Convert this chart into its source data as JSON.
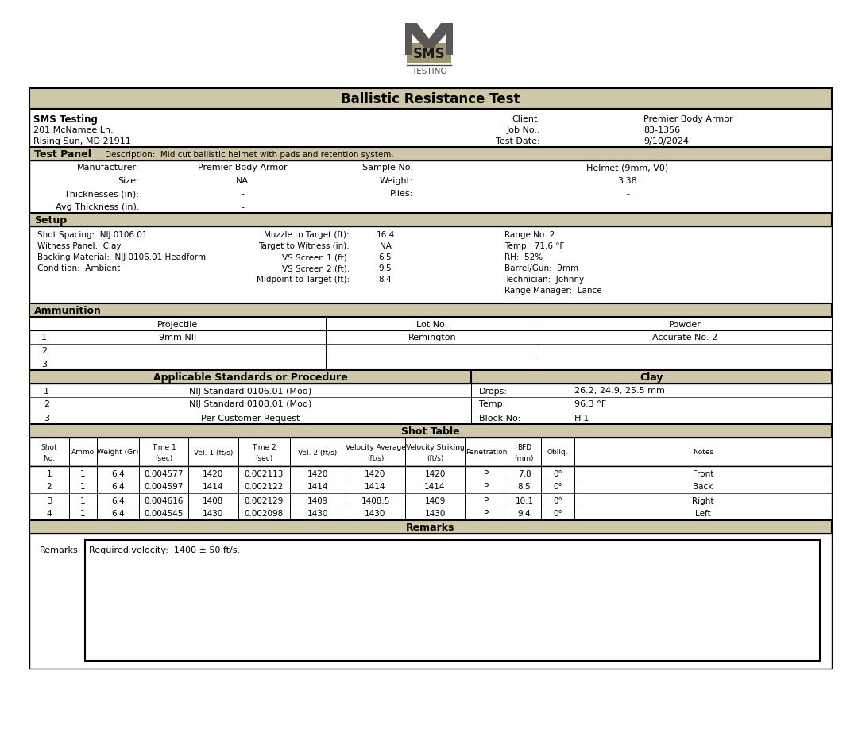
{
  "title": "Ballistic Resistance Test",
  "bg_color": "#ffffff",
  "header_bg": "#cec8a8",
  "border_color": "#000000",
  "company": "SMS Testing",
  "address1": "201 McNamee Ln.",
  "address2": "Rising Sun, MD 21911",
  "client_label": "Client:",
  "client_value": "Premier Body Armor",
  "job_label": "Job No.:",
  "job_value": "83-1356",
  "date_label": "Test Date:",
  "date_value": "9/10/2024",
  "test_panel_desc": "Description:  Mid cut ballistic helmet with pads and retention system.",
  "manufacturer_label": "Manufacturer:",
  "manufacturer_value": "Premier Body Armor",
  "sample_no_label": "Sample No.",
  "sample_no_value": "Helmet (9mm, V0)",
  "size_label": "Size:",
  "size_value": "NA",
  "weight_label": "Weight:",
  "weight_value": "3.38",
  "thickness_label": "Thicknesses (in):",
  "thickness_value": "-",
  "plies_label": "Plies:",
  "plies_value": "-",
  "avg_thickness_label": "Avg Thickness (in):",
  "avg_thickness_value": "-",
  "setup_rows": [
    [
      "Shot Spacing:  NIJ 0106.01",
      "Muzzle to Target (ft):",
      "16.4",
      "Range No. 2"
    ],
    [
      "Witness Panel:  Clay",
      "Target to Witness (in):",
      "NA",
      "Temp:  71.6 °F"
    ],
    [
      "Backing Material:  NIJ 0106.01 Headform",
      "VS Screen 1 (ft):",
      "6.5",
      "RH:  52%"
    ],
    [
      "Condition:  Ambient",
      "VS Screen 2 (ft):",
      "9.5",
      "Barrel/Gun:  9mm"
    ],
    [
      "",
      "Midpoint to Target (ft):",
      "8.4",
      "Technician:  Johnny"
    ],
    [
      "",
      "",
      "",
      "Range Manager:  Lance"
    ]
  ],
  "ammo_headers": [
    "Projectile",
    "Lot No.",
    "Powder"
  ],
  "ammo_rows": [
    [
      "1",
      "9mm NIJ",
      "Remington",
      "Accurate No. 2"
    ],
    [
      "2",
      "",
      "",
      ""
    ],
    [
      "3",
      "",
      "",
      ""
    ]
  ],
  "standards_header": "Applicable Standards or Procedure",
  "clay_header": "Clay",
  "standards_rows": [
    [
      "1",
      "NIJ Standard 0106.01 (Mod)",
      "Drops:",
      "26.2, 24.9, 25.5 mm"
    ],
    [
      "2",
      "NIJ Standard 0108.01 (Mod)",
      "Temp:",
      "96.3 °F"
    ],
    [
      "3",
      "Per Customer Request",
      "Block No:",
      "H-1"
    ]
  ],
  "shot_table_headers": [
    "Shot\nNo.",
    "Ammo",
    "Weight (Gr)",
    "Time 1\n(sec)",
    "Vel. 1 (ft/s)",
    "Time 2\n(sec)",
    "Vel. 2 (ft/s)",
    "Velocity Average\n(ft/s)",
    "Velocity Striking\n(ft/s)",
    "Penetration",
    "BFD\n(mm)",
    "Obliq.",
    "Notes"
  ],
  "shot_rows": [
    [
      "1",
      "1",
      "6.4",
      "0.004577",
      "1420",
      "0.002113",
      "1420",
      "1420",
      "1420",
      "P",
      "7.8",
      "0°",
      "Front"
    ],
    [
      "2",
      "1",
      "6.4",
      "0.004597",
      "1414",
      "0.002122",
      "1414",
      "1414",
      "1414",
      "P",
      "8.5",
      "0°",
      "Back"
    ],
    [
      "3",
      "1",
      "6.4",
      "0.004616",
      "1408",
      "0.002129",
      "1409",
      "1408.5",
      "1409",
      "P",
      "10.1",
      "0°",
      "Right"
    ],
    [
      "4",
      "1",
      "6.4",
      "0.004545",
      "1430",
      "0.002098",
      "1430",
      "1430",
      "1430",
      "P",
      "9.4",
      "0°",
      "Left"
    ]
  ],
  "remarks_text": "Required velocity:  1400 ± 50 ft/s."
}
